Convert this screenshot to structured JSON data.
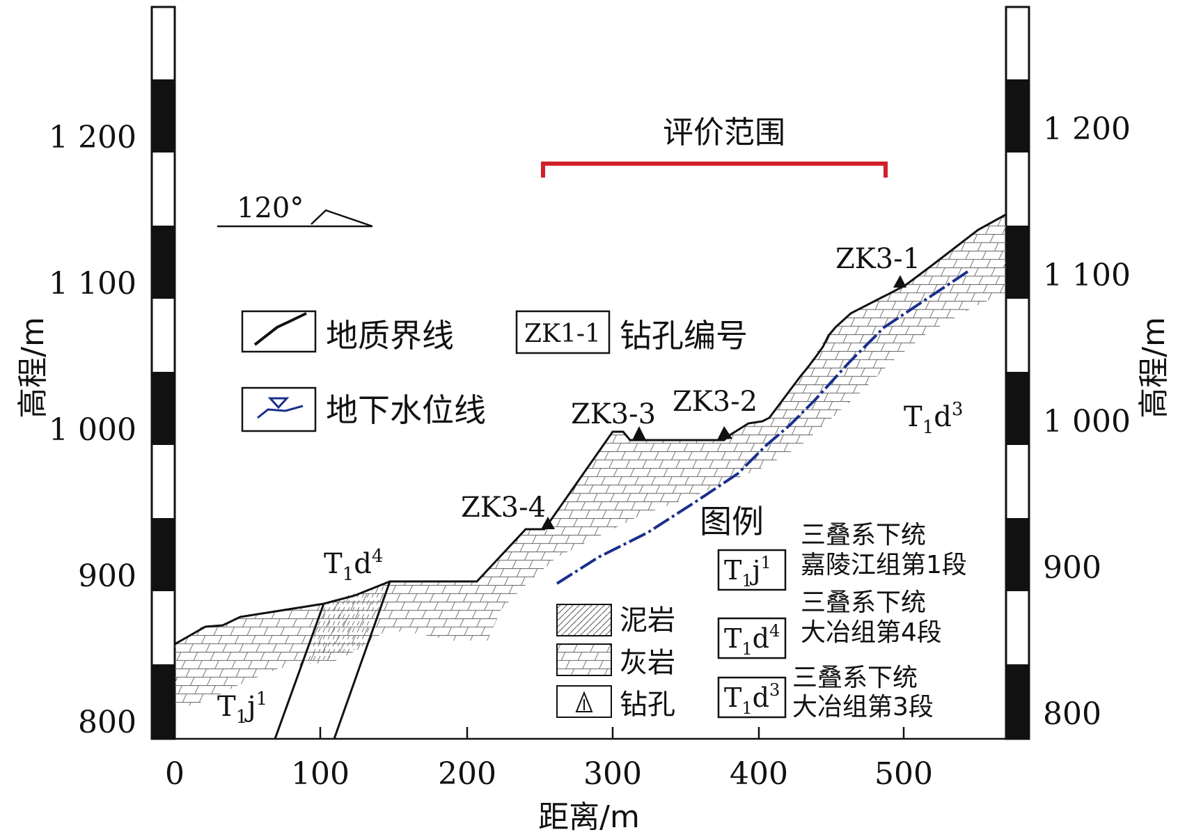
{
  "scale_labels": {
    "left": [
      "1 200",
      "1 100",
      "1 000",
      "900",
      "800"
    ],
    "right": [
      "1 200",
      "1 100",
      "1 000",
      "900",
      "800"
    ]
  },
  "y_axis_title": {
    "left": "高程/m",
    "right": "高程/m"
  },
  "x_axis": {
    "ticks": [
      "0",
      "100",
      "200",
      "300",
      "400",
      "500"
    ],
    "title": "距离/m"
  },
  "evaluation_range": {
    "label": "评价范围",
    "color": "#d0202a"
  },
  "strike": {
    "label": "120°"
  },
  "legend_top": {
    "geo_boundary": "地质界线",
    "groundwater": "地下水位线",
    "borehole_code_box": "ZK1-1",
    "borehole_code": "钻孔编号"
  },
  "boreholes": [
    "ZK3-1",
    "ZK3-2",
    "ZK3-3",
    "ZK3-4"
  ],
  "units": {
    "t1j1": {
      "main": "T",
      "sub": "1",
      "letter": "j",
      "sup": "1"
    },
    "t1d4": {
      "main": "T",
      "sub": "1",
      "letter": "d",
      "sup": "4"
    },
    "t1d3": {
      "main": "T",
      "sub": "1",
      "letter": "d",
      "sup": "3"
    }
  },
  "legend_bottom": {
    "title": "图例",
    "mudstone": "泥岩",
    "limestone": "灰岩",
    "borehole": "钻孔",
    "strata": [
      {
        "code_main": "T",
        "code_sub": "1",
        "code_letter": "j",
        "code_sup": "1",
        "line1": "三叠系下统",
        "line2": "嘉陵江组第1段"
      },
      {
        "code_main": "T",
        "code_sub": "1",
        "code_letter": "d",
        "code_sup": "4",
        "line1": "三叠系下统",
        "line2": "大冶组第4段"
      },
      {
        "code_main": "T",
        "code_sub": "1",
        "code_letter": "d",
        "code_sup": "3",
        "line1": "三叠系下统",
        "line2": "大冶组第3段"
      }
    ]
  },
  "colors": {
    "water_line": "#1a2f8c",
    "ink": "#111111",
    "range_bracket": "#d0202a"
  }
}
